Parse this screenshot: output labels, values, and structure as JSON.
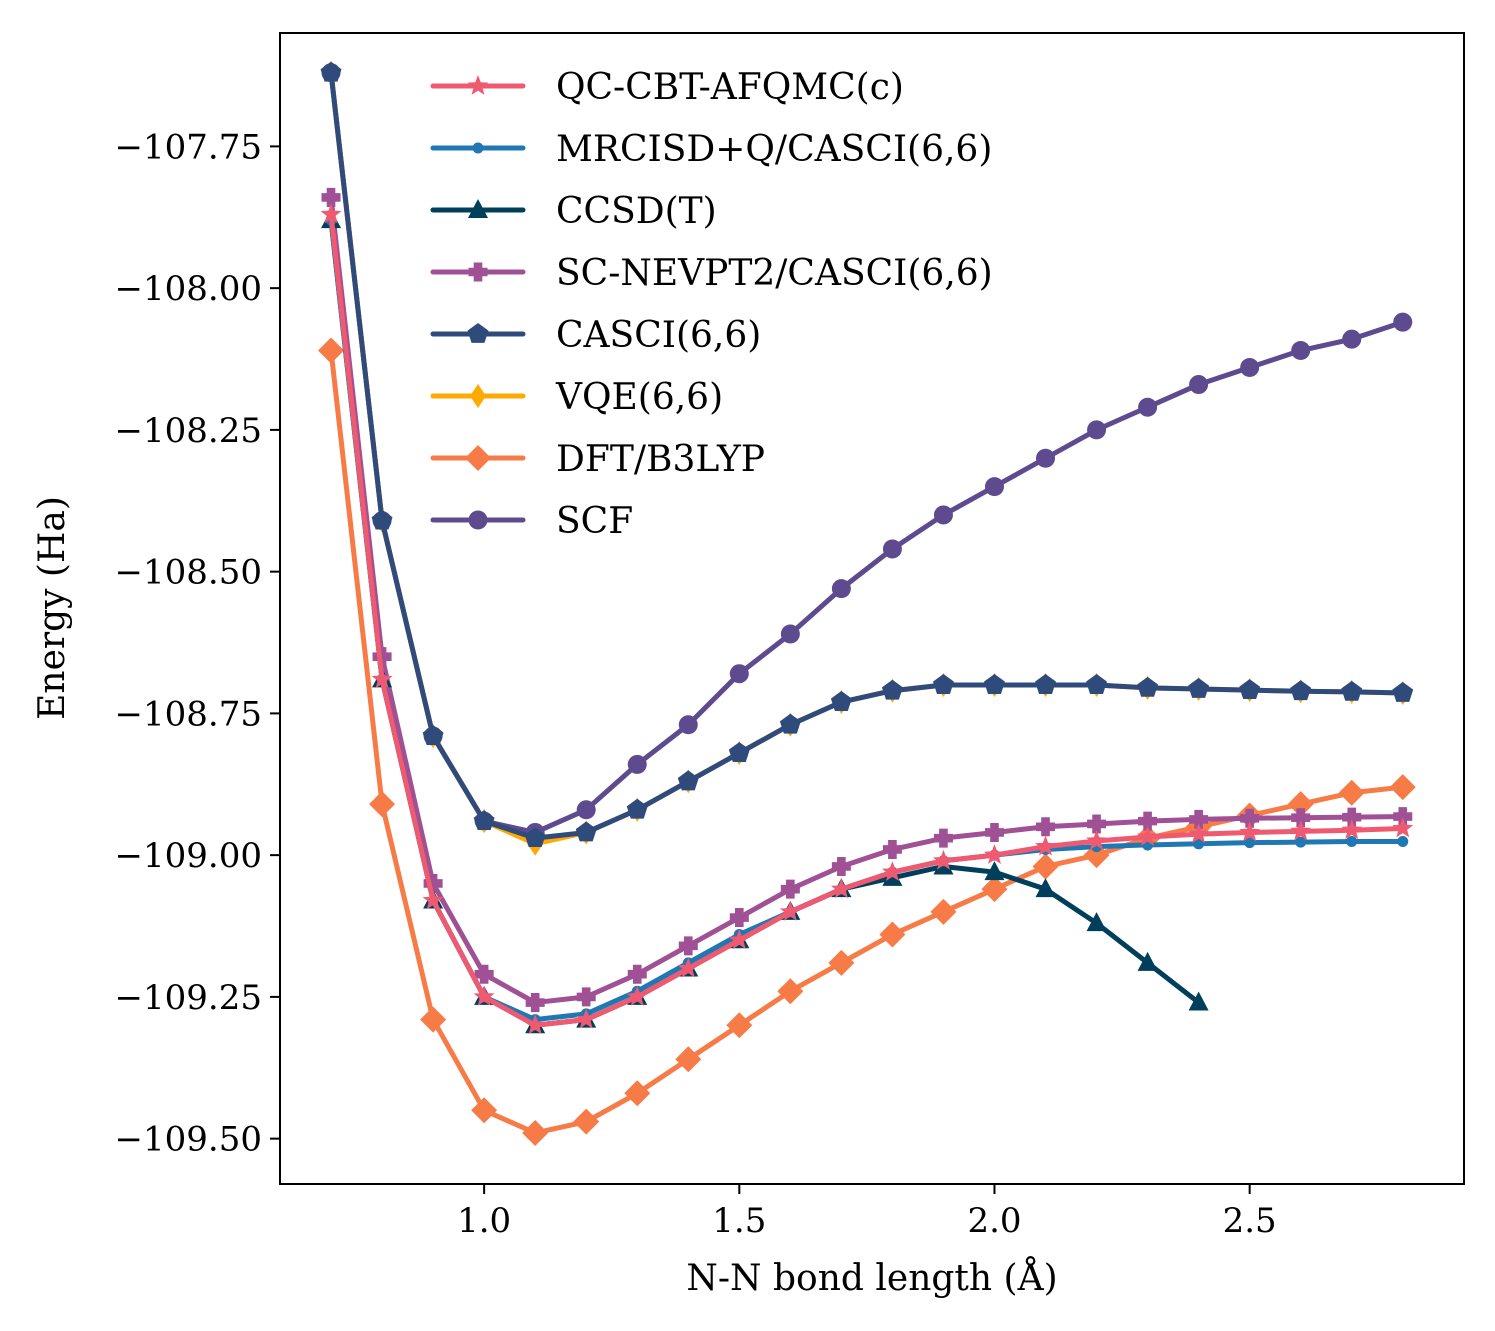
{
  "chart_data": {
    "type": "line",
    "title": "",
    "xlabel": "N-N bond length (Å)",
    "ylabel": "Energy (Ha)",
    "xlim": [
      0.6,
      2.92
    ],
    "ylim": [
      -109.58,
      -107.55
    ],
    "xticks": [
      1.0,
      1.5,
      2.0,
      2.5
    ],
    "xtick_labels": [
      "1.0",
      "1.5",
      "2.0",
      "2.5"
    ],
    "yticks": [
      -107.75,
      -108.0,
      -108.25,
      -108.5,
      -108.75,
      -109.0,
      -109.25,
      -109.5
    ],
    "ytick_labels": [
      "−107.75",
      "−108.00",
      "−108.25",
      "−108.50",
      "−108.75",
      "−109.00",
      "−109.25",
      "−109.50"
    ],
    "grid": false,
    "legend_position": "upper-center",
    "x": [
      0.7,
      0.8,
      0.9,
      1.0,
      1.1,
      1.2,
      1.3,
      1.4,
      1.5,
      1.6,
      1.7,
      1.8,
      1.9,
      2.0,
      2.1,
      2.2,
      2.3,
      2.4,
      2.5,
      2.6,
      2.7,
      2.8
    ],
    "series": [
      {
        "name": "SCF",
        "color": "#5e4b8f",
        "marker": "circle",
        "values": [
          -107.62,
          -108.41,
          -108.79,
          -108.94,
          -108.96,
          -108.92,
          -108.84,
          -108.77,
          -108.68,
          -108.61,
          -108.53,
          -108.46,
          -108.4,
          -108.35,
          -108.3,
          -108.25,
          -108.21,
          -108.17,
          -108.14,
          -108.11,
          -108.09,
          -108.06
        ]
      },
      {
        "name": "DFT/B3LYP",
        "color": "#f77b47",
        "marker": "diamond",
        "values": [
          -108.11,
          -108.91,
          -109.29,
          -109.45,
          -109.49,
          -109.47,
          -109.42,
          -109.36,
          -109.3,
          -109.24,
          -109.19,
          -109.14,
          -109.1,
          -109.06,
          -109.02,
          -109.0,
          -108.97,
          -108.95,
          -108.93,
          -108.91,
          -108.89,
          -108.88
        ]
      },
      {
        "name": "VQE(6,6)",
        "color": "#ffaa00",
        "marker": "thin-diamond",
        "values": [
          -107.62,
          -108.41,
          -108.79,
          -108.94,
          -108.98,
          -108.96,
          -108.92,
          -108.87,
          -108.82,
          -108.77,
          -108.73,
          -108.71,
          -108.7,
          -108.7,
          -108.7,
          -108.7,
          -108.705,
          -108.707,
          -108.709,
          -108.711,
          -108.712,
          -108.714
        ]
      },
      {
        "name": "CASCI(6,6)",
        "color": "#2f4b7c",
        "marker": "pentagon",
        "values": [
          -107.62,
          -108.41,
          -108.79,
          -108.94,
          -108.97,
          -108.96,
          -108.92,
          -108.87,
          -108.82,
          -108.77,
          -108.73,
          -108.71,
          -108.7,
          -108.7,
          -108.7,
          -108.7,
          -108.705,
          -108.707,
          -108.709,
          -108.711,
          -108.712,
          -108.714
        ]
      },
      {
        "name": "SC-NEVPT2/CASCI(6,6)",
        "color": "#a05195",
        "marker": "x",
        "values": [
          -107.84,
          -108.65,
          -109.05,
          -109.21,
          -109.26,
          -109.25,
          -109.21,
          -109.16,
          -109.11,
          -109.06,
          -109.02,
          -108.99,
          -108.97,
          -108.96,
          -108.95,
          -108.945,
          -108.94,
          -108.937,
          -108.935,
          -108.934,
          -108.933,
          -108.932
        ]
      },
      {
        "name": "CCSD(T)",
        "color": "#003f5c",
        "marker": "triangle",
        "values": [
          -107.88,
          -108.69,
          -109.08,
          -109.25,
          -109.3,
          -109.29,
          -109.25,
          -109.2,
          -109.15,
          -109.1,
          -109.06,
          -109.04,
          -109.02,
          -109.03,
          -109.06,
          -109.12,
          -109.19,
          -109.26,
          null,
          null,
          null,
          null
        ]
      },
      {
        "name": "MRCISD+Q/CASCI(6,6)",
        "color": "#1f77b4",
        "marker": "point",
        "values": [
          -107.88,
          -108.69,
          -109.08,
          -109.25,
          -109.29,
          -109.28,
          -109.24,
          -109.19,
          -109.14,
          -109.1,
          -109.06,
          -109.03,
          -109.01,
          -109.0,
          -108.99,
          -108.985,
          -108.982,
          -108.98,
          -108.978,
          -108.977,
          -108.976,
          -108.976
        ]
      },
      {
        "name": "QC-CBT-AFQMC(c)",
        "color": "#f05a70",
        "marker": "star",
        "values": [
          -107.87,
          -108.69,
          -109.08,
          -109.25,
          -109.3,
          -109.29,
          -109.25,
          -109.2,
          -109.15,
          -109.1,
          -109.06,
          -109.03,
          -109.01,
          -109.0,
          -108.985,
          -108.975,
          -108.968,
          -108.963,
          -108.96,
          -108.958,
          -108.956,
          -108.953
        ]
      }
    ],
    "legend": [
      "QC-CBT-AFQMC(c)",
      "MRCISD+Q/CASCI(6,6)",
      "CCSD(T)",
      "SC-NEVPT2/CASCI(6,6)",
      "CASCI(6,6)",
      "VQE(6,6)",
      "DFT/B3LYP",
      "SCF"
    ]
  }
}
